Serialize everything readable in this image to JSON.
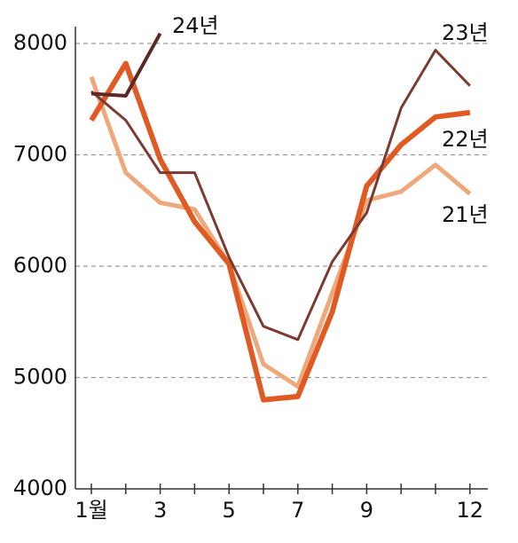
{
  "chart_data": {
    "type": "line",
    "categories": [
      "1월",
      null,
      "3",
      null,
      "5",
      null,
      "7",
      null,
      "9",
      null,
      null,
      "12"
    ],
    "series": [
      {
        "name": "21년",
        "color": "#eda87c",
        "values": [
          7700,
          6840,
          6570,
          6510,
          6020,
          5120,
          4920,
          5760,
          6590,
          6670,
          6910,
          6650
        ]
      },
      {
        "name": "22년",
        "color": "#e05a23",
        "values": [
          7310,
          7820,
          6960,
          6400,
          6020,
          4800,
          4830,
          5590,
          6720,
          7090,
          7340,
          7380
        ]
      },
      {
        "name": "23년",
        "color": "#7a3b32",
        "values": [
          7570,
          7310,
          6840,
          6840,
          6080,
          5460,
          5340,
          6040,
          6480,
          7420,
          7940,
          7620
        ]
      },
      {
        "name": "24년",
        "color": "#5c2a26",
        "values": [
          7550,
          7530,
          8090,
          null,
          null,
          null,
          null,
          null,
          null,
          null,
          null,
          null
        ]
      }
    ],
    "ylim": [
      4000,
      8000
    ],
    "yticks": [
      4000,
      5000,
      6000,
      7000,
      8000
    ],
    "grid": true
  }
}
